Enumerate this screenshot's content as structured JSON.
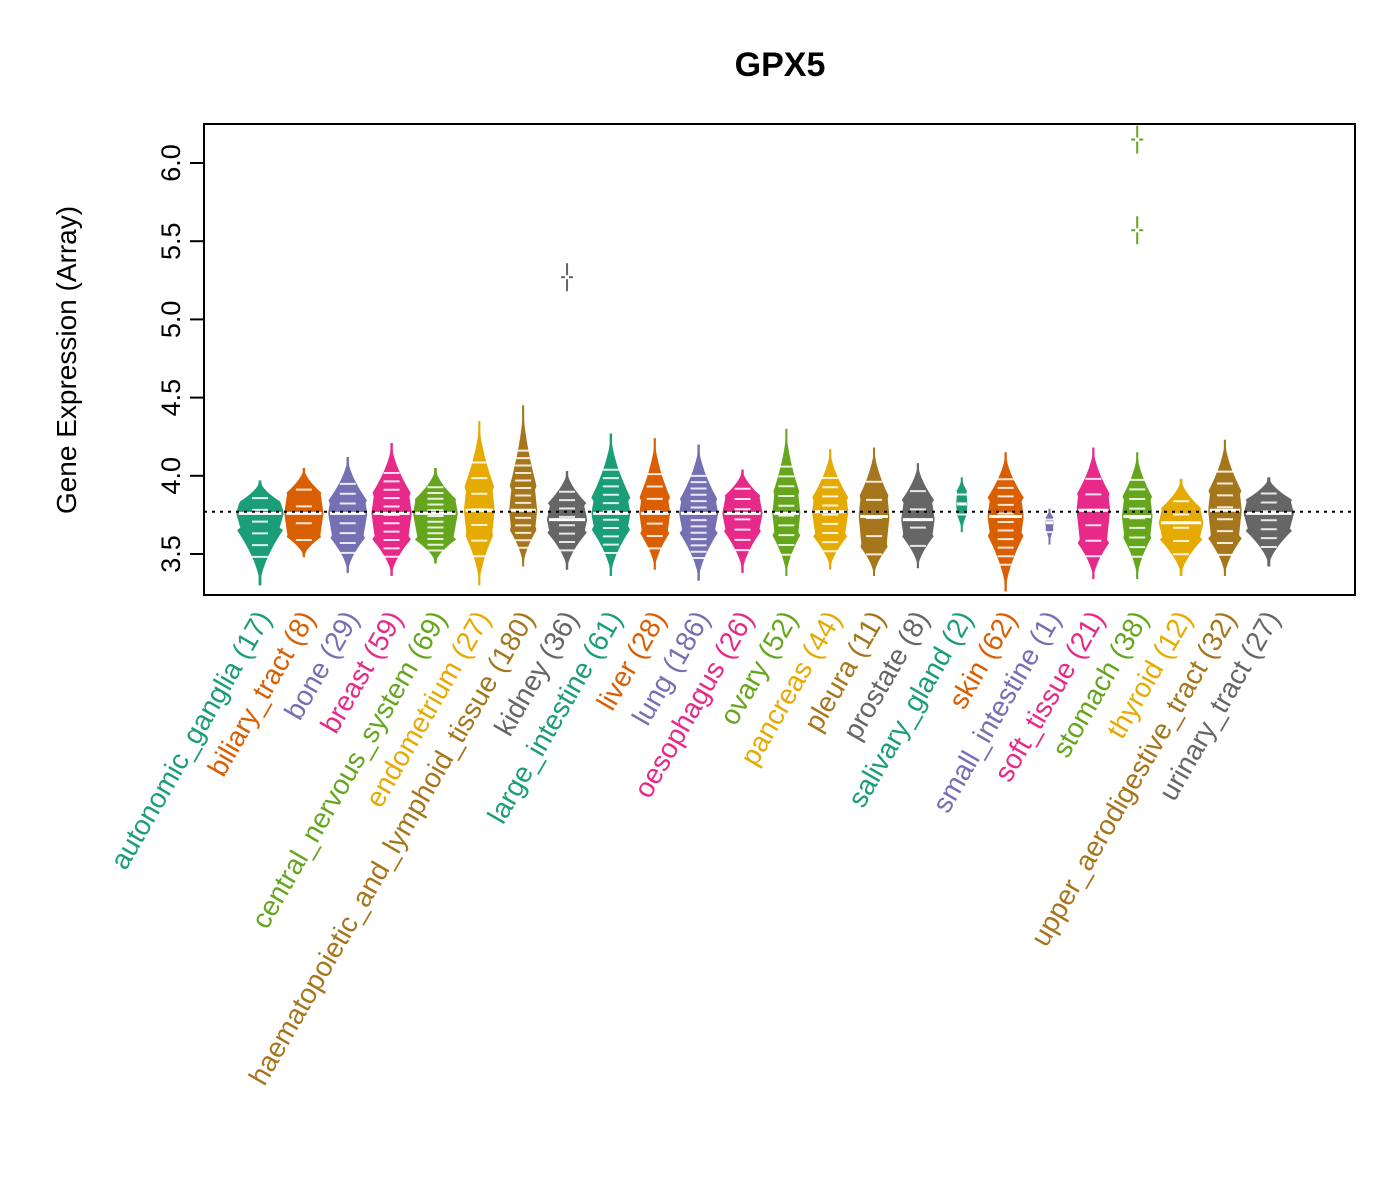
{
  "chart_data": {
    "type": "violin",
    "title": "GPX5",
    "xlabel": "",
    "ylabel": "Gene Expression (Array)",
    "ylim": [
      3.25,
      6.25
    ],
    "yticks": [
      3.5,
      4.0,
      4.5,
      5.0,
      5.5,
      6.0
    ],
    "ytick_labels": [
      "3.5",
      "4.0",
      "4.5",
      "5.0",
      "5.5",
      "6.0"
    ],
    "reference_line": 3.77,
    "grid": false,
    "legend": "none",
    "palette": [
      "#1B9E77",
      "#D95F02",
      "#7570B3",
      "#E7298A",
      "#66A61E",
      "#E6AB02",
      "#A6761D",
      "#666666"
    ],
    "groups": [
      {
        "name": "autonomic_ganglia",
        "n": 17,
        "label": "autonomic_ganglia (17)",
        "min": 3.3,
        "q1": 3.66,
        "median": 3.76,
        "q3": 3.82,
        "max": 3.97,
        "width": 0.85
      },
      {
        "name": "biliary_tract",
        "n": 8,
        "label": "biliary_tract (8)",
        "min": 3.48,
        "q1": 3.62,
        "median": 3.76,
        "q3": 3.88,
        "max": 4.05,
        "width": 0.7
      },
      {
        "name": "bone",
        "n": 29,
        "label": "bone (29)",
        "min": 3.38,
        "q1": 3.62,
        "median": 3.76,
        "q3": 3.84,
        "max": 4.12,
        "width": 0.7
      },
      {
        "name": "breast",
        "n": 59,
        "label": "breast (59)",
        "min": 3.36,
        "q1": 3.6,
        "median": 3.76,
        "q3": 3.88,
        "max": 4.21,
        "width": 0.72
      },
      {
        "name": "central_nervous_system",
        "n": 69,
        "label": "central_nervous_system (69)",
        "min": 3.44,
        "q1": 3.6,
        "median": 3.76,
        "q3": 3.84,
        "max": 4.05,
        "width": 0.8
      },
      {
        "name": "endometrium",
        "n": 27,
        "label": "endometrium (27)",
        "min": 3.3,
        "q1": 3.64,
        "median": 3.78,
        "q3": 3.92,
        "max": 4.35,
        "width": 0.55
      },
      {
        "name": "haematopoietic_and_lymphoid_tissue",
        "n": 180,
        "label": "haematopoietic_and_lymphoid_tissue (180)",
        "min": 3.42,
        "q1": 3.66,
        "median": 3.78,
        "q3": 3.92,
        "max": 4.45,
        "width": 0.5
      },
      {
        "name": "kidney",
        "n": 36,
        "label": "kidney (36)",
        "min": 3.4,
        "q1": 3.64,
        "median": 3.72,
        "q3": 3.82,
        "max": 4.03,
        "width": 0.72,
        "outliers": [
          5.27
        ]
      },
      {
        "name": "large_intestine",
        "n": 61,
        "label": "large_intestine (61)",
        "min": 3.36,
        "q1": 3.66,
        "median": 3.76,
        "q3": 3.86,
        "max": 4.27,
        "width": 0.7
      },
      {
        "name": "liver",
        "n": 28,
        "label": "liver (28)",
        "min": 3.4,
        "q1": 3.64,
        "median": 3.76,
        "q3": 3.86,
        "max": 4.24,
        "width": 0.55
      },
      {
        "name": "lung",
        "n": 186,
        "label": "lung (186)",
        "min": 3.33,
        "q1": 3.64,
        "median": 3.76,
        "q3": 3.84,
        "max": 4.2,
        "width": 0.7
      },
      {
        "name": "oesophagus",
        "n": 26,
        "label": "oesophagus (26)",
        "min": 3.38,
        "q1": 3.66,
        "median": 3.76,
        "q3": 3.86,
        "max": 4.04,
        "width": 0.72
      },
      {
        "name": "ovary",
        "n": 52,
        "label": "ovary (52)",
        "min": 3.36,
        "q1": 3.62,
        "median": 3.76,
        "q3": 3.88,
        "max": 4.3,
        "width": 0.5
      },
      {
        "name": "pancreas",
        "n": 44,
        "label": "pancreas (44)",
        "min": 3.4,
        "q1": 3.62,
        "median": 3.77,
        "q3": 3.86,
        "max": 4.17,
        "width": 0.65
      },
      {
        "name": "pleura",
        "n": 11,
        "label": "pleura (11)",
        "min": 3.36,
        "q1": 3.56,
        "median": 3.74,
        "q3": 3.86,
        "max": 4.18,
        "width": 0.55
      },
      {
        "name": "prostate",
        "n": 8,
        "label": "prostate (8)",
        "min": 3.41,
        "q1": 3.62,
        "median": 3.72,
        "q3": 3.84,
        "max": 4.08,
        "width": 0.6
      },
      {
        "name": "salivary_gland",
        "n": 2,
        "label": "salivary_gland (2)",
        "min": 3.64,
        "q1": 3.76,
        "median": 3.82,
        "q3": 3.9,
        "max": 3.99,
        "width": 0.2
      },
      {
        "name": "skin",
        "n": 62,
        "label": "skin (62)",
        "min": 3.26,
        "q1": 3.62,
        "median": 3.74,
        "q3": 3.86,
        "max": 4.15,
        "width": 0.65
      },
      {
        "name": "small_intestine",
        "n": 1,
        "label": "small_intestine (1)",
        "min": 3.56,
        "q1": 3.66,
        "median": 3.7,
        "q3": 3.73,
        "max": 3.79,
        "width": 0.15
      },
      {
        "name": "soft_tissue",
        "n": 21,
        "label": "soft_tissue (21)",
        "min": 3.34,
        "q1": 3.58,
        "median": 3.78,
        "q3": 3.88,
        "max": 4.18,
        "width": 0.6
      },
      {
        "name": "stomach",
        "n": 38,
        "label": "stomach (38)",
        "min": 3.34,
        "q1": 3.62,
        "median": 3.74,
        "q3": 3.86,
        "max": 4.15,
        "width": 0.55,
        "outliers": [
          5.57,
          6.15
        ]
      },
      {
        "name": "thyroid",
        "n": 12,
        "label": "thyroid (12)",
        "min": 3.36,
        "q1": 3.6,
        "median": 3.7,
        "q3": 3.78,
        "max": 3.98,
        "width": 0.8
      },
      {
        "name": "upper_aerodigestive_tract",
        "n": 32,
        "label": "upper_aerodigestive_tract (32)",
        "min": 3.36,
        "q1": 3.6,
        "median": 3.78,
        "q3": 3.9,
        "max": 4.23,
        "width": 0.6
      },
      {
        "name": "urinary_tract",
        "n": 27,
        "label": "urinary_tract (27)",
        "min": 3.42,
        "q1": 3.66,
        "median": 3.76,
        "q3": 3.84,
        "max": 3.99,
        "width": 0.9
      }
    ]
  }
}
